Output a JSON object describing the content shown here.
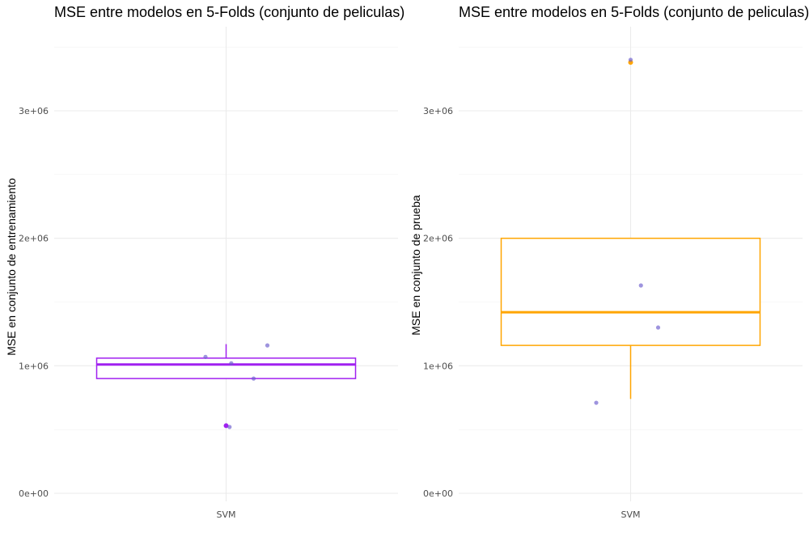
{
  "chart_data": [
    {
      "type": "boxplot",
      "title": "MSE entre modelos en 5-Folds (conjunto de peliculas)",
      "xlabel": "",
      "ylabel": "MSE en conjunto de entrenamiento",
      "categories": [
        "SVM"
      ],
      "ylim": [
        0,
        3500000
      ],
      "yticks": [
        0,
        1000000,
        2000000,
        3000000
      ],
      "ytick_labels": [
        "0e+00",
        "1e+06",
        "2e+06",
        "3e+06"
      ],
      "box_color": "#A020F0",
      "point_color": "#6A5ACD",
      "box": {
        "q1": 900000,
        "median": 1010000,
        "q3": 1060000,
        "whisker_low": 900000,
        "whisker_high": 1170000
      },
      "outliers": [
        530000
      ],
      "points": [
        {
          "x_jitter": -0.12,
          "y": 1070000
        },
        {
          "x_jitter": 0.03,
          "y": 1020000
        },
        {
          "x_jitter": 0.16,
          "y": 900000
        },
        {
          "x_jitter": 0.24,
          "y": 1160000
        },
        {
          "x_jitter": 0.02,
          "y": 520000
        }
      ],
      "grid": true
    },
    {
      "type": "boxplot",
      "title": "MSE entre modelos en 5-Folds (conjunto de peliculas)",
      "xlabel": "",
      "ylabel": "MSE en conjunto de prueba",
      "categories": [
        "SVM"
      ],
      "ylim": [
        0,
        3500000
      ],
      "yticks": [
        0,
        1000000,
        2000000,
        3000000
      ],
      "ytick_labels": [
        "0e+00",
        "1e+06",
        "2e+06",
        "3e+06"
      ],
      "box_color": "#FFA500",
      "point_color": "#6A5ACD",
      "box": {
        "q1": 1160000,
        "median": 1420000,
        "q3": 2000000,
        "whisker_low": 740000,
        "whisker_high": 2000000
      },
      "outliers": [
        3380000
      ],
      "points": [
        {
          "x_jitter": 0.0,
          "y": 3400000
        },
        {
          "x_jitter": 0.06,
          "y": 1630000
        },
        {
          "x_jitter": 0.16,
          "y": 1300000
        },
        {
          "x_jitter": -0.2,
          "y": 710000
        }
      ],
      "grid": true
    }
  ]
}
